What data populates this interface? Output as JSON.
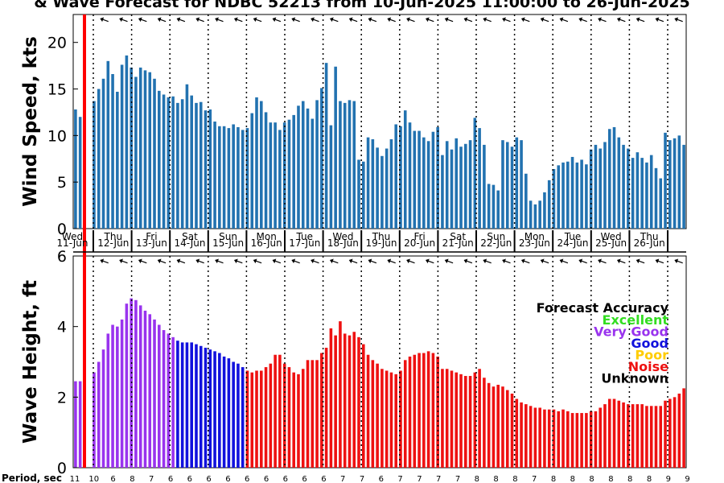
{
  "title": "& Wave Forecast for NDBC 52213 from 10-Jun-2025 11:00:00 to 26-Jun-2025",
  "chart_data": [
    {
      "type": "bar",
      "ylabel": "Wind Speed, kts",
      "ylim": [
        0,
        23
      ],
      "yticks": [
        0,
        5,
        10,
        15,
        20
      ],
      "grid": false,
      "bar_color": "#2272b0",
      "day_labels": [
        {
          "day": "Wed",
          "date": "11-Jun"
        },
        {
          "day": "Thu",
          "date": "12-Jun"
        },
        {
          "day": "Fri",
          "date": "13-Jun"
        },
        {
          "day": "Sat",
          "date": "14-Jun"
        },
        {
          "day": "Sun",
          "date": "15-Jun"
        },
        {
          "day": "Mon",
          "date": "16-Jun"
        },
        {
          "day": "Tue",
          "date": "17-Jun"
        },
        {
          "day": "Wed",
          "date": "18-Jun"
        },
        {
          "day": "Thu",
          "date": "19-Jun"
        },
        {
          "day": "Fri",
          "date": "20-Jun"
        },
        {
          "day": "Sat",
          "date": "21-Jun"
        },
        {
          "day": "Sun",
          "date": "22-Jun"
        },
        {
          "day": "Mon",
          "date": "23-Jun"
        },
        {
          "day": "Tue",
          "date": "24-Jun"
        },
        {
          "day": "Wed",
          "date": "25-Jun"
        },
        {
          "day": "Thu",
          "date": "26-Jun"
        }
      ],
      "series": [
        {
          "values": [
            12.8,
            12.0,
            null,
            null,
            13.7,
            15.0,
            16.1,
            18.0,
            16.6,
            14.7,
            17.6,
            18.6,
            17.3,
            16.3,
            17.3,
            17.0,
            16.8,
            16.1,
            14.8,
            14.4,
            14.1,
            14.2,
            13.5,
            13.9,
            15.5,
            14.3,
            13.5,
            13.6,
            12.7,
            12.8,
            11.5,
            11.0,
            11.0,
            10.8,
            11.2,
            10.9,
            10.6,
            10.8,
            12.4,
            14.1,
            13.7,
            12.5,
            11.4,
            11.4,
            10.6,
            11.4,
            11.7,
            12.2,
            13.2,
            13.7,
            12.9,
            11.8,
            13.8,
            15.1,
            17.8,
            11.1,
            17.4,
            13.7,
            13.5,
            13.8,
            13.7,
            7.4,
            7.2,
            9.8,
            9.6,
            8.7,
            7.8,
            8.6,
            9.6,
            11.2,
            11.0,
            12.7,
            11.4,
            10.5,
            10.5,
            9.8,
            9.4,
            10.4,
            10.9,
            7.9,
            9.4,
            8.5,
            9.7,
            8.8,
            9.1,
            9.5,
            11.9,
            10.8,
            9.0,
            4.8,
            4.7,
            4.1,
            9.5,
            9.3,
            8.8,
            9.8,
            9.5,
            5.9,
            3.0,
            2.6,
            3.0,
            3.9,
            5.2,
            6.4,
            6.8,
            7.1,
            7.2,
            7.7,
            7.1,
            7.4,
            6.9,
            8.5,
            9.0,
            8.6,
            9.3,
            10.7,
            10.9,
            9.8,
            9.0,
            8.6,
            7.6,
            8.2,
            7.6,
            7.1,
            7.9,
            6.5,
            5.4,
            10.3,
            9.5,
            9.7,
            10.0,
            9.0
          ]
        }
      ]
    },
    {
      "type": "bar",
      "ylabel": "Wave Height, ft",
      "ylim": [
        0,
        6
      ],
      "yticks": [
        0,
        2,
        4,
        6
      ],
      "grid": false,
      "legend": {
        "title": "Forecast Accuracy",
        "entries": [
          {
            "label": "Excellent",
            "color": "#33dd22"
          },
          {
            "label": "Very Good",
            "color": "#9933ee"
          },
          {
            "label": "Good",
            "color": "#1111dd"
          },
          {
            "label": "Poor",
            "color": "#ffcc00"
          },
          {
            "label": "Noise",
            "color": "#ee1111"
          },
          {
            "label": "Unknown",
            "color": "#000000"
          }
        ]
      },
      "series": [
        {
          "values": [
            2.45,
            2.45,
            null,
            null,
            2.7,
            3.0,
            3.35,
            3.8,
            4.05,
            4.0,
            4.2,
            4.65,
            4.8,
            4.75,
            4.6,
            4.45,
            4.35,
            4.2,
            4.05,
            3.9,
            3.8,
            3.7,
            3.6,
            3.55,
            3.55,
            3.55,
            3.5,
            3.45,
            3.4,
            3.35,
            3.3,
            3.25,
            3.15,
            3.1,
            3.0,
            2.95,
            2.85,
            2.75,
            2.7,
            2.75,
            2.75,
            2.85,
            2.95,
            3.2,
            3.2,
            2.95,
            2.85,
            2.7,
            2.65,
            2.8,
            3.05,
            3.05,
            3.05,
            3.25,
            3.4,
            3.95,
            3.75,
            4.15,
            3.8,
            3.75,
            3.85,
            3.7,
            3.5,
            3.2,
            3.05,
            2.95,
            2.8,
            2.75,
            2.7,
            2.65,
            2.75,
            3.05,
            3.15,
            3.2,
            3.25,
            3.25,
            3.3,
            3.25,
            3.15,
            2.8,
            2.8,
            2.75,
            2.7,
            2.65,
            2.6,
            2.6,
            2.7,
            2.8,
            2.55,
            2.4,
            2.3,
            2.35,
            2.3,
            2.2,
            2.1,
            1.95,
            1.85,
            1.8,
            1.75,
            1.7,
            1.7,
            1.65,
            1.65,
            1.65,
            1.6,
            1.65,
            1.6,
            1.55,
            1.55,
            1.55,
            1.55,
            1.6,
            1.6,
            1.7,
            1.8,
            1.95,
            1.95,
            1.9,
            1.85,
            1.8,
            1.8,
            1.8,
            1.8,
            1.75,
            1.75,
            1.75,
            1.75,
            1.9,
            1.95,
            2.0,
            2.1,
            2.25
          ]
        }
      ],
      "colors": {
        "very_good": "#9933ee",
        "good": "#1111dd",
        "noise": "#ee1111"
      },
      "segments": [
        {
          "from": 0,
          "to": 21,
          "quality": "very_good"
        },
        {
          "from": 22,
          "to": 36,
          "quality": "good"
        },
        {
          "from": 37,
          "to": 132,
          "quality": "noise"
        }
      ],
      "period_label": "Period, sec",
      "periods": [
        "11",
        "10",
        "6",
        "8",
        "7",
        "6",
        "6",
        "6",
        "6",
        "6",
        "6",
        "6",
        "6",
        "6",
        "7",
        "7",
        "6",
        "7",
        "7",
        "7",
        "7",
        "8",
        "8",
        "8",
        "7",
        "8",
        "8",
        "8",
        "8",
        "8",
        "8",
        "9",
        "9",
        "8",
        "8",
        "8",
        "7",
        "8",
        "8",
        "8",
        "8",
        "8",
        "8",
        "8",
        "8",
        "8"
      ]
    }
  ]
}
